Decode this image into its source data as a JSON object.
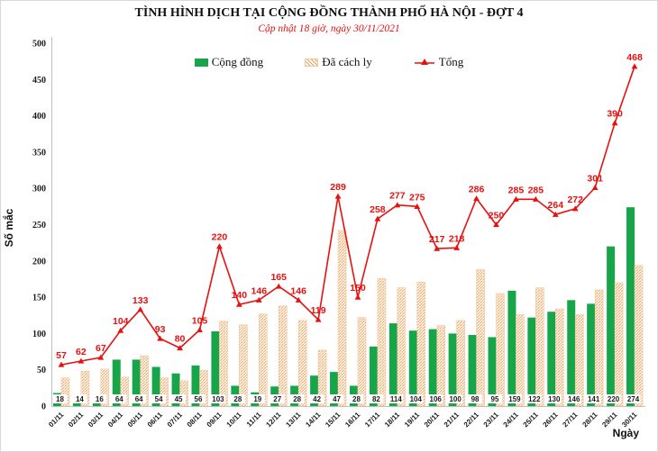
{
  "title": "TÌNH HÌNH DỊCH TẠI CỘNG ĐỒNG THÀNH PHỐ HÀ NỘI - ĐỢT 4",
  "subtitle": "Cập nhật 18 giờ, ngày 30/11/2021",
  "legend": {
    "community": "Cộng đồng",
    "quarantine": "Đã cách ly",
    "total": "Tổng"
  },
  "axes": {
    "y_title": "Số mắc",
    "x_title": "Ngày"
  },
  "colors": {
    "community_green": "#17a54a",
    "quarantine_orange": "#eda058",
    "total_red": "#e8100f",
    "axis_gray": "#bfbfbf",
    "text_black": "#1a1a1a"
  },
  "chart_data": {
    "type": "bar",
    "title": "TÌNH HÌNH DỊCH TẠI CỘNG ĐỒNG THÀNH PHỐ HÀ NỘI - ĐỢT 4",
    "subtitle": "Cập nhật 18 giờ, ngày 30/11/2021",
    "xlabel": "Ngày",
    "ylabel": "Số mắc",
    "ylim": [
      0,
      500
    ],
    "ytick_step": 50,
    "grid": false,
    "legend_position": "top",
    "categories": [
      "01/11",
      "02/11",
      "03/11",
      "04/11",
      "05/11",
      "06/11",
      "07/11",
      "08/11",
      "09/11",
      "10/11",
      "11/11",
      "12/11",
      "13/11",
      "14/11",
      "15/11",
      "16/11",
      "17/11",
      "18/11",
      "19/11",
      "20/11",
      "21/11",
      "22/11",
      "23/11",
      "24/11",
      "25/11",
      "26/11",
      "27/11",
      "28/11",
      "29/11",
      "30/11"
    ],
    "series": [
      {
        "name": "Cộng đồng",
        "type": "bar",
        "style": "solid",
        "color": "#17a54a",
        "values": [
          18,
          14,
          16,
          64,
          64,
          54,
          45,
          56,
          103,
          28,
          19,
          27,
          28,
          42,
          47,
          28,
          82,
          114,
          104,
          106,
          100,
          98,
          95,
          159,
          122,
          130,
          146,
          141,
          220,
          274
        ]
      },
      {
        "name": "Đã cách ly",
        "type": "bar",
        "style": "hatched",
        "color": "#eda058",
        "values": [
          39,
          48,
          51,
          40,
          69,
          39,
          35,
          49,
          117,
          112,
          127,
          138,
          118,
          77,
          242,
          122,
          176,
          163,
          171,
          111,
          118,
          188,
          155,
          126,
          163,
          134,
          126,
          160,
          170,
          194
        ]
      },
      {
        "name": "Tổng",
        "type": "line",
        "style": "line-triangle-markers",
        "color": "#e8100f",
        "values": [
          57,
          62,
          67,
          104,
          133,
          93,
          80,
          105,
          220,
          140,
          146,
          165,
          146,
          119,
          289,
          150,
          258,
          277,
          275,
          217,
          218,
          286,
          250,
          285,
          285,
          264,
          272,
          301,
          390,
          468
        ]
      }
    ]
  }
}
